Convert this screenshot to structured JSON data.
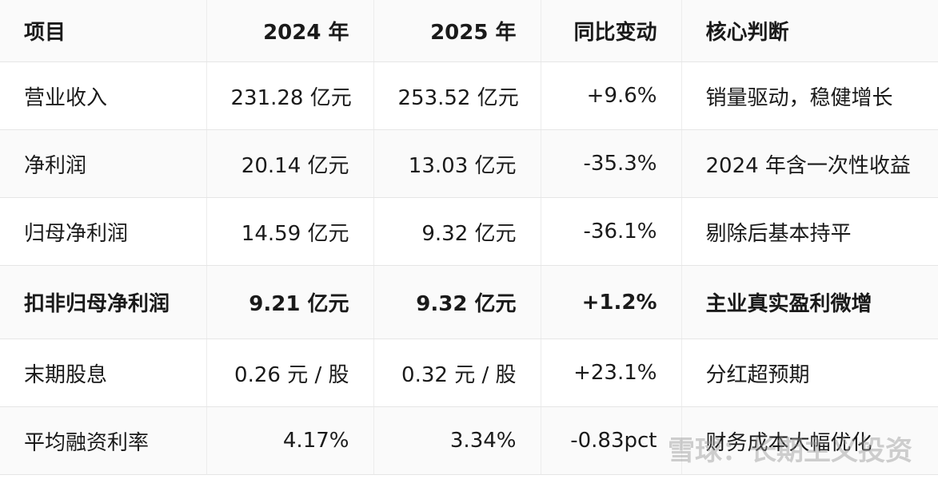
{
  "table": {
    "header": [
      "项目",
      "2024 年",
      "2025 年",
      "同比变动",
      "核心判断"
    ],
    "rows": [
      [
        "营业收入",
        "231.28 亿元",
        "253.52 亿元",
        "+9.6%",
        "销量驱动，稳健增长"
      ],
      [
        "净利润",
        "20.14 亿元",
        "13.03 亿元",
        "-35.3%",
        "2024 年含一次性收益"
      ],
      [
        "归母净利润",
        "14.59 亿元",
        "9.32 亿元",
        "-36.1%",
        "剔除后基本持平"
      ],
      [
        "扣非归母净利润",
        "9.21 亿元",
        "9.32 亿元",
        "+1.2%",
        "主业真实盈利微增"
      ],
      [
        "末期股息",
        "0.26 元 / 股",
        "0.32 元 / 股",
        "+23.1%",
        "分红超预期"
      ],
      [
        "平均融资利率",
        "4.17%",
        "3.34%",
        "-0.83pct",
        "财务成本大幅优化"
      ]
    ]
  },
  "watermark": "雪球：长期主义投资"
}
